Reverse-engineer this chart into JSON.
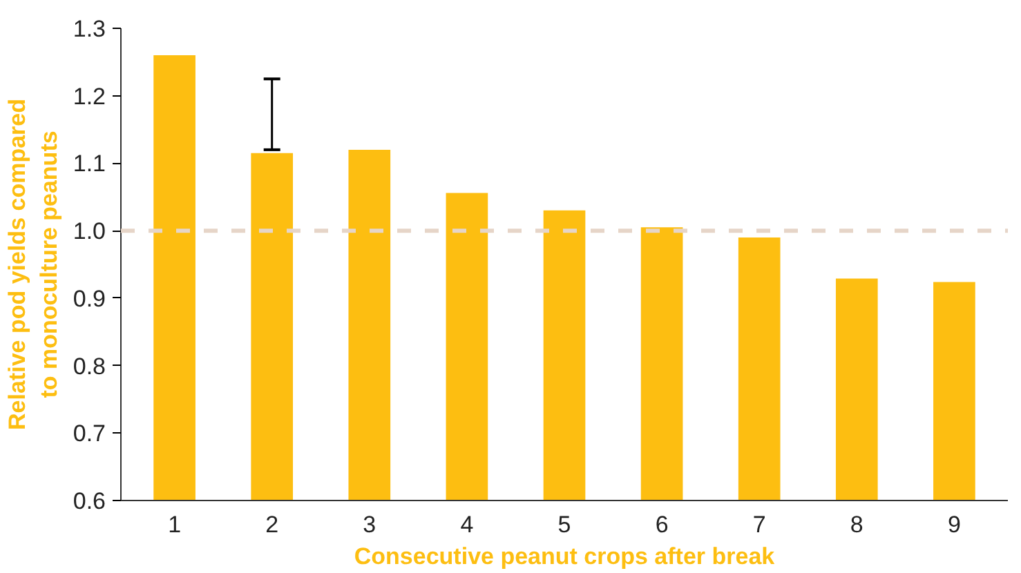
{
  "chart_data": {
    "type": "bar",
    "xlabel": "Consecutive peanut crops after break",
    "ylabel": "Relative pod yields compared\nto monoculture peanuts",
    "categories": [
      "1",
      "2",
      "3",
      "4",
      "5",
      "6",
      "7",
      "8",
      "9"
    ],
    "values": [
      1.26,
      1.115,
      1.12,
      1.056,
      1.03,
      1.005,
      0.99,
      0.929,
      0.924
    ],
    "errors": [
      null,
      [
        1.12,
        1.225
      ],
      null,
      null,
      null,
      null,
      null,
      null,
      null
    ],
    "color": "#fdbe11",
    "ylim": [
      0.6,
      1.3
    ],
    "yticks": [
      {
        "value": 0.6,
        "label": "0.6"
      },
      {
        "value": 0.7,
        "label": "0.7"
      },
      {
        "value": 0.8,
        "label": "0.8"
      },
      {
        "value": 0.9,
        "label": "0.9"
      },
      {
        "value": 1.0,
        "label": "1.0"
      },
      {
        "value": 1.1,
        "label": "1.1"
      },
      {
        "value": 1.2,
        "label": "1.2"
      },
      {
        "value": 1.3,
        "label": "1.3"
      }
    ],
    "ref_lines": [
      {
        "axis": "y",
        "value": 1.0,
        "label": null,
        "color": "#e6d5c8",
        "line_style": "dashed"
      }
    ],
    "grid": false
  }
}
